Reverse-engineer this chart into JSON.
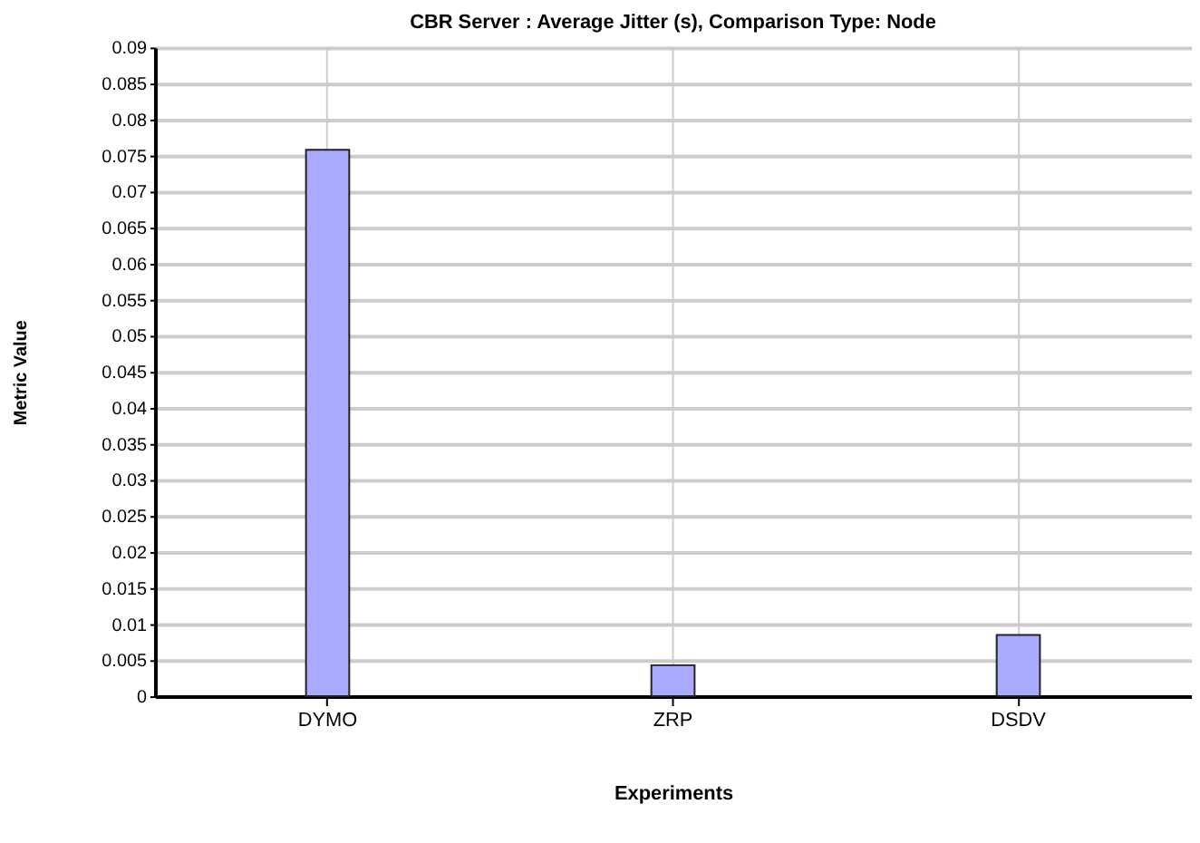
{
  "chart_data": {
    "type": "bar",
    "title": "CBR Server :  Average Jitter (s), Comparison Type: Node",
    "xlabel": "Experiments",
    "ylabel": "Metric Value",
    "categories": [
      "DYMO",
      "ZRP",
      "DSDV"
    ],
    "values": [
      0.0758,
      0.0043,
      0.0085
    ],
    "color": "#aaaaff",
    "ylim": [
      0,
      0.09
    ],
    "yticks": [
      0,
      0.005,
      0.01,
      0.015,
      0.02,
      0.025,
      0.03,
      0.035,
      0.04,
      0.045,
      0.05,
      0.055,
      0.06,
      0.065,
      0.07,
      0.075,
      0.08,
      0.085,
      0.09
    ],
    "grid": true
  }
}
